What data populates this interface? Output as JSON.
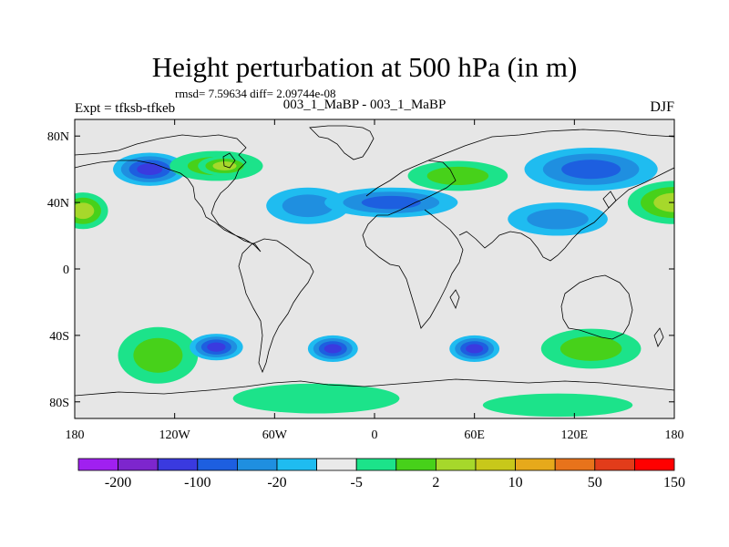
{
  "title": "Height perturbation at 500 hPa (in m)",
  "stats": "rmsd= 7.59634 diff= 2.09744e-08",
  "left_label": "Expt = tfksb-tfkeb",
  "center_label": "003_1_MaBP - 003_1_MaBP",
  "right_label": "DJF",
  "map": {
    "lon_range": [
      -180,
      180
    ],
    "lat_range": [
      -90,
      90
    ],
    "background_color": "#e6e6e6",
    "lat_ticks": [
      {
        "lat": 80,
        "label": "80N"
      },
      {
        "lat": 40,
        "label": "40N"
      },
      {
        "lat": 0,
        "label": "0"
      },
      {
        "lat": -40,
        "label": "40S"
      },
      {
        "lat": -80,
        "label": "80S"
      }
    ],
    "lon_ticks": [
      {
        "lon": -180,
        "label": "180"
      },
      {
        "lon": -120,
        "label": "120W"
      },
      {
        "lon": -60,
        "label": "60W"
      },
      {
        "lon": 0,
        "label": "0"
      },
      {
        "lon": 60,
        "label": "60E"
      },
      {
        "lon": 120,
        "label": "120E"
      },
      {
        "lon": 180,
        "label": "180"
      }
    ],
    "anomalies": [
      {
        "lon": -135,
        "lat": 60,
        "rx": 22,
        "ry": 10,
        "level": -4
      },
      {
        "lon": -95,
        "lat": 62,
        "rx": 28,
        "ry": 9,
        "level": 2
      },
      {
        "lon": -90,
        "lat": 62,
        "rx": 16,
        "ry": 6,
        "level": 3
      },
      {
        "lon": -175,
        "lat": 35,
        "rx": 15,
        "ry": 11,
        "level": 3
      },
      {
        "lon": 180,
        "lat": 40,
        "rx": 28,
        "ry": 13,
        "level": 3
      },
      {
        "lon": -40,
        "lat": 38,
        "rx": 25,
        "ry": 11,
        "level": -2
      },
      {
        "lon": 10,
        "lat": 40,
        "rx": 40,
        "ry": 9,
        "level": -3
      },
      {
        "lon": 50,
        "lat": 56,
        "rx": 30,
        "ry": 9,
        "level": 2
      },
      {
        "lon": 130,
        "lat": 60,
        "rx": 40,
        "ry": 13,
        "level": -3
      },
      {
        "lon": 110,
        "lat": 30,
        "rx": 30,
        "ry": 10,
        "level": -2
      },
      {
        "lon": -130,
        "lat": -52,
        "rx": 24,
        "ry": 17,
        "level": 2
      },
      {
        "lon": -95,
        "lat": -47,
        "rx": 16,
        "ry": 8,
        "level": -4
      },
      {
        "lon": -25,
        "lat": -48,
        "rx": 15,
        "ry": 8,
        "level": -4
      },
      {
        "lon": 60,
        "lat": -48,
        "rx": 15,
        "ry": 8,
        "level": -4
      },
      {
        "lon": 130,
        "lat": -48,
        "rx": 30,
        "ry": 12,
        "level": 2
      },
      {
        "lon": -35,
        "lat": -78,
        "rx": 50,
        "ry": 9,
        "level": 1
      },
      {
        "lon": 110,
        "lat": -82,
        "rx": 45,
        "ry": 7,
        "level": 1
      }
    ]
  },
  "colorbar": {
    "colors": [
      "#a020f0",
      "#7d26cd",
      "#3a3adf",
      "#1d5fe0",
      "#1f8fe0",
      "#1fbcf0",
      "#eaeaea",
      "#1ce38a",
      "#47d11a",
      "#a6d82b",
      "#c8c81a",
      "#e6a91b",
      "#e8731b",
      "#e23c1a",
      "#ff0000"
    ],
    "labels": [
      "-200",
      "-100",
      "-20",
      "-5",
      "2",
      "10",
      "50",
      "150"
    ]
  }
}
